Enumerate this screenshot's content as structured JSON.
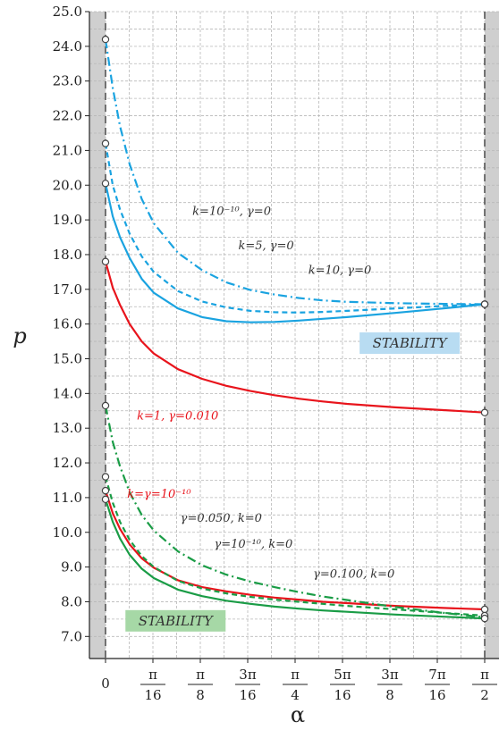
{
  "chart_data": {
    "type": "line",
    "ylabel": "p",
    "xlabel": "α",
    "ylim": [
      6.8,
      25.0
    ],
    "xlim": [
      -0.025,
      1.6
    ],
    "grid": true,
    "y_ticks": [
      "25.0",
      "24.0",
      "23.0",
      "22.0",
      "21.0",
      "20.0",
      "19.0",
      "18.0",
      "17.0",
      "16.0",
      "15.0",
      "14.0",
      "13.0",
      "12.0",
      "11.0",
      "10.0",
      "9.0",
      "8.0",
      "7.0"
    ],
    "x_ticks": [
      {
        "num": "0",
        "den": ""
      },
      {
        "num": "π",
        "den": "16"
      },
      {
        "num": "π",
        "den": "8"
      },
      {
        "num": "3π",
        "den": "16"
      },
      {
        "num": "π",
        "den": "4"
      },
      {
        "num": "5π",
        "den": "16"
      },
      {
        "num": "3π",
        "den": "8"
      },
      {
        "num": "7π",
        "den": "16"
      },
      {
        "num": "π",
        "den": "2"
      }
    ],
    "series": [
      {
        "name": "k=10⁻¹⁰, γ=0",
        "style": "solid",
        "color": "#1aa3e0",
        "x": [
          0,
          0.03,
          0.06,
          0.1,
          0.15,
          0.2,
          0.3,
          0.4,
          0.5,
          0.6,
          0.7,
          0.8,
          0.9,
          1.0,
          1.2,
          1.4,
          1.5708
        ],
        "y": [
          20.05,
          19.1,
          18.5,
          17.9,
          17.3,
          16.9,
          16.45,
          16.2,
          16.08,
          16.05,
          16.06,
          16.1,
          16.15,
          16.2,
          16.32,
          16.45,
          16.57
        ]
      },
      {
        "name": "k=5, γ=0",
        "style": "dashed",
        "color": "#1aa3e0",
        "x": [
          0,
          0.03,
          0.06,
          0.1,
          0.15,
          0.2,
          0.3,
          0.4,
          0.5,
          0.6,
          0.7,
          0.8,
          0.9,
          1.0,
          1.2,
          1.4,
          1.5708
        ],
        "y": [
          21.2,
          20.0,
          19.3,
          18.6,
          17.95,
          17.5,
          16.95,
          16.65,
          16.48,
          16.38,
          16.34,
          16.33,
          16.35,
          16.38,
          16.45,
          16.52,
          16.57
        ]
      },
      {
        "name": "k=10, γ=0",
        "style": "dashdot",
        "color": "#1aa3e0",
        "x": [
          0,
          0.03,
          0.06,
          0.1,
          0.15,
          0.2,
          0.3,
          0.4,
          0.5,
          0.6,
          0.7,
          0.8,
          0.9,
          1.0,
          1.2,
          1.4,
          1.5708
        ],
        "y": [
          24.2,
          22.8,
          21.7,
          20.6,
          19.6,
          18.9,
          18.05,
          17.55,
          17.2,
          16.98,
          16.85,
          16.75,
          16.68,
          16.64,
          16.6,
          16.58,
          16.57
        ]
      },
      {
        "name": "k=1, γ=0.010",
        "style": "solid",
        "color": "#e8141c",
        "x": [
          0,
          0.03,
          0.06,
          0.1,
          0.15,
          0.2,
          0.3,
          0.4,
          0.5,
          0.6,
          0.7,
          0.8,
          0.9,
          1.0,
          1.2,
          1.4,
          1.5708
        ],
        "y": [
          17.8,
          17.05,
          16.55,
          16.0,
          15.5,
          15.15,
          14.7,
          14.42,
          14.22,
          14.07,
          13.95,
          13.85,
          13.77,
          13.7,
          13.6,
          13.52,
          13.45
        ]
      },
      {
        "name": "k=γ=10⁻¹⁰",
        "style": "solid",
        "color": "#e8141c",
        "x": [
          0,
          0.03,
          0.06,
          0.1,
          0.15,
          0.2,
          0.3,
          0.4,
          0.5,
          0.6,
          0.7,
          0.8,
          0.9,
          1.0,
          1.2,
          1.4,
          1.5708
        ],
        "y": [
          11.2,
          10.55,
          10.1,
          9.65,
          9.25,
          8.98,
          8.62,
          8.42,
          8.3,
          8.2,
          8.12,
          8.06,
          8.0,
          7.96,
          7.88,
          7.82,
          7.78
        ]
      },
      {
        "name": "γ=0.050, k=0",
        "style": "dashdot",
        "color": "#1a9c46",
        "x": [
          0,
          0.03,
          0.06,
          0.1,
          0.15,
          0.2,
          0.3,
          0.4,
          0.5,
          0.6,
          0.7,
          0.8,
          0.9,
          1.0,
          1.2,
          1.4,
          1.5708
        ],
        "y": [
          13.65,
          12.6,
          11.9,
          11.15,
          10.5,
          10.05,
          9.45,
          9.05,
          8.78,
          8.58,
          8.42,
          8.28,
          8.15,
          8.05,
          7.85,
          7.68,
          7.55
        ]
      },
      {
        "name": "γ=0.100, k=0",
        "style": "dashed",
        "color": "#1a9c46",
        "x": [
          0,
          0.03,
          0.06,
          0.1,
          0.15,
          0.2,
          0.3,
          0.4,
          0.5,
          0.6,
          0.7,
          0.8,
          0.9,
          1.0,
          1.2,
          1.4,
          1.5708
        ],
        "y": [
          11.6,
          10.85,
          10.3,
          9.78,
          9.32,
          9.0,
          8.6,
          8.38,
          8.24,
          8.14,
          8.06,
          8.0,
          7.94,
          7.88,
          7.78,
          7.68,
          7.6
        ]
      },
      {
        "name": "γ=10⁻¹⁰, k=0",
        "style": "solid",
        "color": "#1a9c46",
        "x": [
          0,
          0.03,
          0.06,
          0.1,
          0.15,
          0.2,
          0.3,
          0.4,
          0.5,
          0.6,
          0.7,
          0.8,
          0.9,
          1.0,
          1.2,
          1.4,
          1.5708
        ],
        "y": [
          10.95,
          10.3,
          9.82,
          9.35,
          8.95,
          8.68,
          8.35,
          8.16,
          8.03,
          7.94,
          7.86,
          7.8,
          7.75,
          7.71,
          7.63,
          7.57,
          7.52
        ]
      }
    ],
    "annotations": [
      {
        "text": "k=10⁻¹⁰, γ=0",
        "color": "#333333",
        "x": 0.36,
        "y": 19.15
      },
      {
        "text": "k=5, γ=0",
        "color": "#333333",
        "x": 0.55,
        "y": 18.15
      },
      {
        "text": "k=10, γ=0",
        "color": "#333333",
        "x": 0.84,
        "y": 17.45
      },
      {
        "text": "k=1, γ=0.010",
        "color": "#e8141c",
        "x": 0.13,
        "y": 13.25
      },
      {
        "text": "k=γ=10⁻¹⁰",
        "color": "#e8141c",
        "x": 0.09,
        "y": 11.0
      },
      {
        "text": "γ=0.050, k=0",
        "color": "#333333",
        "x": 0.31,
        "y": 10.3
      },
      {
        "text": "γ=10⁻¹⁰, k=0",
        "color": "#333333",
        "x": 0.45,
        "y": 9.55
      },
      {
        "text": "γ=0.100, k=0",
        "color": "#333333",
        "x": 0.86,
        "y": 8.7
      }
    ],
    "regions": [
      {
        "label": "STABILITY",
        "color": "#b8dcf2",
        "x": 1.26,
        "y": 15.45
      },
      {
        "label": "STABILITY",
        "color": "#a6d8a6",
        "x": 0.29,
        "y": 7.45
      }
    ]
  }
}
